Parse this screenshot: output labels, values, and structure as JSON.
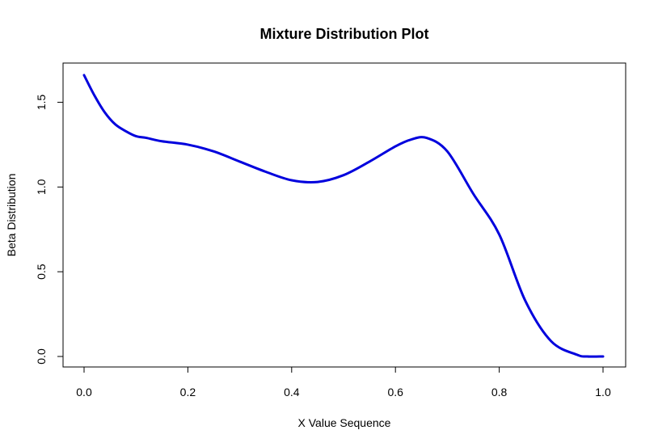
{
  "chart_data": {
    "type": "line",
    "title": "Mixture Distribution Plot",
    "xlabel": "X Value Sequence",
    "ylabel": "Beta Distribution",
    "xlim": [
      0.0,
      1.0
    ],
    "ylim": [
      0.0,
      1.66
    ],
    "x_ticks": [
      "0.0",
      "0.2",
      "0.4",
      "0.6",
      "0.8",
      "1.0"
    ],
    "y_ticks": [
      "0.0",
      "0.5",
      "1.0",
      "1.5"
    ],
    "grid": false,
    "legend": "none",
    "series": [
      {
        "color": "#0000dd",
        "x": [
          0.0,
          0.02,
          0.04,
          0.06,
          0.08,
          0.1,
          0.12,
          0.15,
          0.2,
          0.25,
          0.3,
          0.35,
          0.4,
          0.45,
          0.5,
          0.55,
          0.6,
          0.63,
          0.66,
          0.7,
          0.75,
          0.8,
          0.85,
          0.9,
          0.95,
          0.97,
          1.0
        ],
        "y": [
          1.66,
          1.54,
          1.44,
          1.37,
          1.33,
          1.3,
          1.29,
          1.27,
          1.25,
          1.21,
          1.15,
          1.09,
          1.04,
          1.03,
          1.07,
          1.15,
          1.24,
          1.28,
          1.29,
          1.21,
          0.96,
          0.72,
          0.33,
          0.09,
          0.01,
          0.0,
          0.0
        ]
      }
    ]
  }
}
